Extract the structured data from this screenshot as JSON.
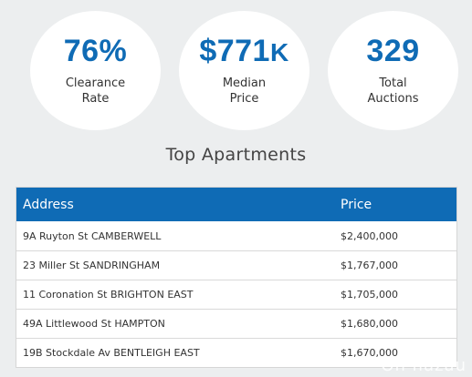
{
  "stats": [
    {
      "value": "76",
      "unit": "%",
      "label": "Clearance Rate"
    },
    {
      "value": "$771",
      "unit": "K",
      "label": "Median Price"
    },
    {
      "value": "329",
      "unit": "",
      "label": "Total Auctions"
    }
  ],
  "section_title": "Top Apartments",
  "table": {
    "headers": {
      "address": "Address",
      "price": "Price"
    },
    "rows": [
      {
        "address": "9A Ruyton St CAMBERWELL",
        "price": "$2,400,000"
      },
      {
        "address": "23 Miller St SANDRINGHAM",
        "price": "$1,767,000"
      },
      {
        "address": "11 Coronation St BRIGHTON EAST",
        "price": "$1,705,000"
      },
      {
        "address": "49A Littlewood St HAMPTON",
        "price": "$1,680,000"
      },
      {
        "address": "19B Stockdale Av BENTLEIGH EAST",
        "price": "$1,670,000"
      }
    ]
  },
  "watermark": "On nazau",
  "colors": {
    "accent": "#0f6bb5",
    "background": "#eceeef"
  }
}
